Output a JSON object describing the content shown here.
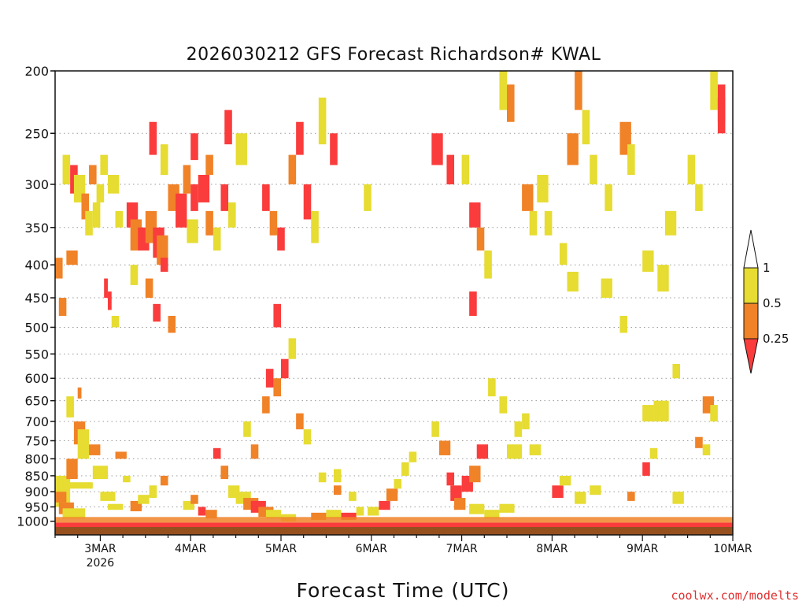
{
  "chart_data": {
    "type": "heatmap",
    "title": "2026030212 GFS Forecast Richardson# KWAL",
    "xlabel": "Forecast Time (UTC)",
    "ylabel": "",
    "credit": "coolwx.com/modelts",
    "y_axis": {
      "scale": "log-pressure",
      "range": [
        1050,
        200
      ],
      "ticks": [
        "200",
        "250",
        "300",
        "350",
        "400",
        "450",
        "500",
        "550",
        "600",
        "650",
        "700",
        "750",
        "800",
        "850",
        "900",
        "950",
        "1000"
      ],
      "tick_values": [
        200,
        250,
        300,
        350,
        400,
        450,
        500,
        550,
        600,
        650,
        700,
        750,
        800,
        850,
        900,
        950,
        1000
      ]
    },
    "x_axis": {
      "unit": "hours since 2026-03-02 12Z",
      "range": [
        0,
        180
      ],
      "ticks": [
        {
          "hour": 12,
          "label": "3MAR",
          "sublabel": "2026"
        },
        {
          "hour": 36,
          "label": "4MAR",
          "sublabel": ""
        },
        {
          "hour": 60,
          "label": "5MAR",
          "sublabel": ""
        },
        {
          "hour": 84,
          "label": "6MAR",
          "sublabel": ""
        },
        {
          "hour": 108,
          "label": "7MAR",
          "sublabel": ""
        },
        {
          "hour": 132,
          "label": "8MAR",
          "sublabel": ""
        },
        {
          "hour": 156,
          "label": "9MAR",
          "sublabel": ""
        },
        {
          "hour": 180,
          "label": "10MAR",
          "sublabel": ""
        }
      ]
    },
    "legend": {
      "placement": "right",
      "levels": [
        {
          "label": "1",
          "value": 1.0,
          "color": "#ffffff"
        },
        {
          "label": "0.5",
          "value": 0.5,
          "color": "#e6dc32"
        },
        {
          "label": "0.25",
          "value": 0.25,
          "color": "#f08228"
        }
      ],
      "below_color": "#fa3c3c"
    },
    "grid": true,
    "colors": {
      "red": "#fa3c3c",
      "orange": "#f08228",
      "yellow": "#e6dc32",
      "ground": "#96501e"
    },
    "cells": [
      [
        0,
        4,
        850,
        950,
        "y"
      ],
      [
        0,
        3,
        900,
        935,
        "o"
      ],
      [
        1,
        5,
        935,
        975,
        "o"
      ],
      [
        2,
        8,
        955,
        990,
        "y"
      ],
      [
        0,
        10,
        870,
        890,
        "y"
      ],
      [
        3,
        6,
        800,
        860,
        "o"
      ],
      [
        5,
        8,
        700,
        760,
        "o"
      ],
      [
        3,
        5,
        640,
        690,
        "y"
      ],
      [
        6,
        7,
        620,
        645,
        "o"
      ],
      [
        6,
        9,
        720,
        800,
        "y"
      ],
      [
        9,
        12,
        760,
        790,
        "o"
      ],
      [
        10,
        14,
        820,
        860,
        "y"
      ],
      [
        12,
        16,
        900,
        930,
        "y"
      ],
      [
        14,
        18,
        940,
        960,
        "y"
      ],
      [
        16,
        19,
        780,
        800,
        "o"
      ],
      [
        18,
        20,
        850,
        870,
        "y"
      ],
      [
        0,
        2,
        390,
        420,
        "o"
      ],
      [
        1,
        3,
        450,
        480,
        "o"
      ],
      [
        3,
        6,
        380,
        400,
        "o"
      ],
      [
        2,
        4,
        270,
        300,
        "y"
      ],
      [
        4,
        6,
        280,
        310,
        "r"
      ],
      [
        5,
        8,
        290,
        320,
        "y"
      ],
      [
        7,
        9,
        310,
        340,
        "o"
      ],
      [
        8,
        10,
        330,
        360,
        "y"
      ],
      [
        10,
        12,
        320,
        350,
        "y"
      ],
      [
        9,
        11,
        280,
        300,
        "o"
      ],
      [
        11,
        13,
        300,
        320,
        "y"
      ],
      [
        12,
        14,
        270,
        290,
        "y"
      ],
      [
        14,
        17,
        290,
        310,
        "y"
      ],
      [
        16,
        18,
        330,
        350,
        "y"
      ],
      [
        19,
        22,
        320,
        350,
        "r"
      ],
      [
        20,
        23,
        340,
        380,
        "o"
      ],
      [
        22,
        25,
        350,
        380,
        "r"
      ],
      [
        24,
        27,
        330,
        370,
        "o"
      ],
      [
        26,
        29,
        350,
        390,
        "r"
      ],
      [
        27,
        30,
        360,
        400,
        "o"
      ],
      [
        28,
        30,
        390,
        410,
        "r"
      ],
      [
        30,
        33,
        300,
        330,
        "o"
      ],
      [
        32,
        35,
        310,
        350,
        "r"
      ],
      [
        34,
        36,
        280,
        310,
        "o"
      ],
      [
        35,
        38,
        340,
        370,
        "y"
      ],
      [
        13,
        14,
        420,
        450,
        "r"
      ],
      [
        14,
        15,
        440,
        470,
        "r"
      ],
      [
        15,
        17,
        480,
        500,
        "y"
      ],
      [
        20,
        22,
        400,
        430,
        "y"
      ],
      [
        24,
        26,
        420,
        450,
        "o"
      ],
      [
        26,
        28,
        460,
        490,
        "r"
      ],
      [
        30,
        32,
        480,
        510,
        "o"
      ],
      [
        36,
        38,
        300,
        330,
        "r"
      ],
      [
        38,
        41,
        290,
        320,
        "r"
      ],
      [
        40,
        42,
        330,
        360,
        "o"
      ],
      [
        42,
        44,
        350,
        380,
        "y"
      ],
      [
        44,
        46,
        300,
        330,
        "r"
      ],
      [
        46,
        48,
        320,
        350,
        "y"
      ],
      [
        25,
        27,
        240,
        270,
        "r"
      ],
      [
        28,
        30,
        260,
        290,
        "y"
      ],
      [
        36,
        38,
        250,
        275,
        "r"
      ],
      [
        40,
        42,
        270,
        290,
        "o"
      ],
      [
        45,
        47,
        230,
        260,
        "r"
      ],
      [
        48,
        51,
        250,
        280,
        "y"
      ],
      [
        42,
        44,
        770,
        800,
        "r"
      ],
      [
        44,
        46,
        820,
        860,
        "o"
      ],
      [
        46,
        49,
        880,
        920,
        "y"
      ],
      [
        48,
        52,
        900,
        940,
        "y"
      ],
      [
        50,
        54,
        920,
        960,
        "o"
      ],
      [
        52,
        56,
        930,
        970,
        "r"
      ],
      [
        54,
        58,
        950,
        985,
        "o"
      ],
      [
        56,
        60,
        960,
        990,
        "y"
      ],
      [
        60,
        64,
        975,
        1000,
        "y"
      ],
      [
        50,
        52,
        700,
        740,
        "y"
      ],
      [
        52,
        54,
        760,
        800,
        "o"
      ],
      [
        55,
        57,
        640,
        680,
        "o"
      ],
      [
        56,
        58,
        580,
        620,
        "r"
      ],
      [
        58,
        60,
        600,
        640,
        "o"
      ],
      [
        60,
        62,
        560,
        600,
        "r"
      ],
      [
        62,
        64,
        520,
        560,
        "y"
      ],
      [
        58,
        60,
        460,
        500,
        "r"
      ],
      [
        55,
        57,
        300,
        330,
        "r"
      ],
      [
        57,
        59,
        330,
        360,
        "o"
      ],
      [
        59,
        61,
        350,
        380,
        "r"
      ],
      [
        62,
        64,
        270,
        300,
        "o"
      ],
      [
        64,
        66,
        240,
        270,
        "r"
      ],
      [
        66,
        68,
        300,
        340,
        "r"
      ],
      [
        68,
        70,
        330,
        370,
        "y"
      ],
      [
        70,
        72,
        220,
        260,
        "y"
      ],
      [
        73,
        75,
        250,
        280,
        "r"
      ],
      [
        64,
        66,
        680,
        720,
        "o"
      ],
      [
        66,
        68,
        720,
        760,
        "y"
      ],
      [
        68,
        72,
        970,
        995,
        "o"
      ],
      [
        72,
        76,
        960,
        990,
        "y"
      ],
      [
        76,
        80,
        970,
        995,
        "r"
      ],
      [
        74,
        76,
        830,
        870,
        "y"
      ],
      [
        83,
        86,
        950,
        980,
        "y"
      ],
      [
        86,
        89,
        930,
        960,
        "r"
      ],
      [
        88,
        91,
        890,
        930,
        "o"
      ],
      [
        90,
        92,
        860,
        890,
        "y"
      ],
      [
        82,
        84,
        300,
        330,
        "y"
      ],
      [
        92,
        94,
        810,
        850,
        "y"
      ],
      [
        94,
        96,
        780,
        810,
        "y"
      ],
      [
        100,
        102,
        700,
        740,
        "y"
      ],
      [
        102,
        105,
        750,
        790,
        "o"
      ],
      [
        104,
        106,
        840,
        880,
        "r"
      ],
      [
        105,
        108,
        880,
        930,
        "r"
      ],
      [
        108,
        111,
        850,
        900,
        "r"
      ],
      [
        110,
        113,
        820,
        870,
        "o"
      ],
      [
        112,
        115,
        760,
        800,
        "r"
      ],
      [
        106,
        109,
        920,
        960,
        "o"
      ],
      [
        110,
        114,
        940,
        975,
        "y"
      ],
      [
        114,
        118,
        960,
        990,
        "y"
      ],
      [
        118,
        122,
        940,
        970,
        "y"
      ],
      [
        120,
        124,
        760,
        800,
        "y"
      ],
      [
        126,
        129,
        760,
        790,
        "y"
      ],
      [
        132,
        135,
        880,
        920,
        "r"
      ],
      [
        134,
        137,
        850,
        880,
        "y"
      ],
      [
        138,
        141,
        900,
        940,
        "y"
      ],
      [
        142,
        145,
        880,
        910,
        "y"
      ],
      [
        152,
        154,
        900,
        930,
        "o"
      ],
      [
        156,
        158,
        810,
        850,
        "r"
      ],
      [
        158,
        160,
        770,
        800,
        "y"
      ],
      [
        164,
        167,
        900,
        940,
        "y"
      ],
      [
        172,
        175,
        640,
        680,
        "o"
      ],
      [
        174,
        176,
        660,
        700,
        "y"
      ],
      [
        170,
        172,
        740,
        770,
        "o"
      ],
      [
        172,
        174,
        760,
        790,
        "y"
      ],
      [
        156,
        159,
        660,
        700,
        "y"
      ],
      [
        159,
        163,
        650,
        700,
        "y"
      ],
      [
        164,
        166,
        570,
        600,
        "y"
      ],
      [
        100,
        103,
        250,
        280,
        "r"
      ],
      [
        104,
        106,
        270,
        300,
        "r"
      ],
      [
        108,
        110,
        270,
        300,
        "y"
      ],
      [
        110,
        113,
        320,
        350,
        "r"
      ],
      [
        112,
        114,
        350,
        380,
        "o"
      ],
      [
        114,
        116,
        380,
        420,
        "y"
      ],
      [
        110,
        112,
        440,
        480,
        "r"
      ],
      [
        118,
        120,
        200,
        230,
        "y"
      ],
      [
        120,
        122,
        210,
        240,
        "o"
      ],
      [
        128,
        131,
        290,
        320,
        "y"
      ],
      [
        130,
        132,
        330,
        360,
        "y"
      ],
      [
        136,
        139,
        250,
        280,
        "o"
      ],
      [
        138,
        140,
        200,
        230,
        "o"
      ],
      [
        140,
        142,
        230,
        260,
        "y"
      ],
      [
        142,
        144,
        270,
        300,
        "y"
      ],
      [
        146,
        148,
        300,
        330,
        "y"
      ],
      [
        150,
        153,
        240,
        270,
        "o"
      ],
      [
        152,
        154,
        260,
        290,
        "y"
      ],
      [
        156,
        159,
        380,
        410,
        "y"
      ],
      [
        160,
        163,
        400,
        440,
        "y"
      ],
      [
        162,
        165,
        330,
        360,
        "y"
      ],
      [
        168,
        170,
        270,
        300,
        "y"
      ],
      [
        170,
        172,
        300,
        330,
        "y"
      ],
      [
        174,
        176,
        200,
        230,
        "y"
      ],
      [
        176,
        178,
        210,
        240,
        "r"
      ],
      [
        136,
        139,
        410,
        440,
        "y"
      ],
      [
        145,
        148,
        420,
        450,
        "y"
      ],
      [
        150,
        152,
        480,
        510,
        "y"
      ],
      [
        124,
        127,
        300,
        330,
        "o"
      ],
      [
        126,
        128,
        330,
        360,
        "y"
      ],
      [
        134,
        136,
        370,
        400,
        "y"
      ],
      [
        176,
        178,
        220,
        250,
        "r"
      ],
      [
        115,
        117,
        600,
        640,
        "y"
      ],
      [
        118,
        120,
        640,
        680,
        "y"
      ],
      [
        122,
        124,
        700,
        740,
        "y"
      ],
      [
        124,
        126,
        680,
        720,
        "y"
      ],
      [
        70,
        72,
        840,
        870,
        "y"
      ],
      [
        74,
        76,
        880,
        910,
        "o"
      ],
      [
        78,
        80,
        900,
        930,
        "y"
      ],
      [
        80,
        82,
        950,
        980,
        "y"
      ],
      [
        34,
        37,
        930,
        960,
        "y"
      ],
      [
        36,
        38,
        910,
        940,
        "o"
      ],
      [
        38,
        40,
        950,
        980,
        "r"
      ],
      [
        40,
        43,
        960,
        990,
        "o"
      ],
      [
        20,
        23,
        930,
        965,
        "o"
      ],
      [
        22,
        25,
        910,
        940,
        "y"
      ],
      [
        25,
        27,
        880,
        920,
        "y"
      ],
      [
        28,
        30,
        850,
        880,
        "o"
      ]
    ]
  }
}
